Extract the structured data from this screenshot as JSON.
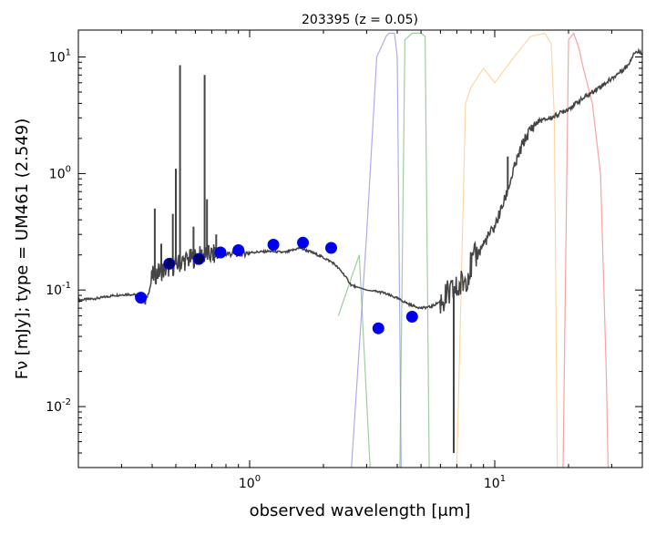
{
  "chart_data": {
    "type": "line",
    "title": "203395 (z = 0.05)",
    "xlabel": "observed wavelength [μm]",
    "ylabel": "Fν [mJy];  type = UM461 (2.549)",
    "x_scale": "log",
    "y_scale": "log",
    "xlim": [
      0.2,
      40
    ],
    "ylim": [
      0.003,
      17
    ],
    "x_ticks": [
      {
        "value": 1,
        "base": "10",
        "exp": "0"
      },
      {
        "value": 10,
        "base": "10",
        "exp": "1"
      }
    ],
    "y_ticks": [
      {
        "value": 0.01,
        "base": "10",
        "exp": "-2"
      },
      {
        "value": 0.1,
        "base": "10",
        "exp": "-1"
      },
      {
        "value": 1,
        "base": "10",
        "exp": "0"
      },
      {
        "value": 10,
        "base": "10",
        "exp": "1"
      }
    ],
    "grid": false,
    "colors": {
      "sed": "#444444",
      "points": "#0000ee",
      "points_dark": "#000066"
    },
    "sed_template": {
      "x": [
        0.2,
        0.24,
        0.28,
        0.32,
        0.36,
        0.38,
        0.39,
        0.4,
        0.42,
        0.45,
        0.5,
        0.55,
        0.6,
        0.65,
        0.7,
        0.8,
        0.9,
        1.0,
        1.2,
        1.4,
        1.6,
        1.8,
        2.0,
        2.2,
        2.4,
        2.6,
        2.8,
        3.0,
        3.5,
        4.0,
        4.5,
        5.0,
        5.5,
        6.0,
        6.5,
        7.0,
        7.5,
        8.0,
        9.0,
        10.0,
        11.0,
        12.0,
        13.0,
        14.0,
        15.0,
        17.0,
        20.0,
        25.0,
        30.0,
        35.0,
        37.0
      ],
      "y": [
        0.082,
        0.085,
        0.09,
        0.092,
        0.09,
        0.085,
        0.1,
        0.13,
        0.14,
        0.15,
        0.165,
        0.18,
        0.19,
        0.2,
        0.2,
        0.205,
        0.205,
        0.21,
        0.215,
        0.21,
        0.23,
        0.21,
        0.19,
        0.17,
        0.14,
        0.11,
        0.105,
        0.1,
        0.095,
        0.085,
        0.075,
        0.07,
        0.072,
        0.08,
        0.09,
        0.1,
        0.12,
        0.16,
        0.25,
        0.35,
        0.6,
        1.1,
        1.8,
        2.4,
        2.8,
        3.0,
        3.6,
        5.0,
        6.5,
        8.5,
        11.0
      ]
    },
    "sed_spikes": [
      {
        "x": 0.375,
        "y": 0.075
      },
      {
        "x": 0.41,
        "y": 0.5
      },
      {
        "x": 0.436,
        "y": 0.25
      },
      {
        "x": 0.486,
        "y": 0.45
      },
      {
        "x": 0.5,
        "y": 1.1
      },
      {
        "x": 0.52,
        "y": 8.5
      },
      {
        "x": 0.59,
        "y": 0.35
      },
      {
        "x": 0.655,
        "y": 7.0
      },
      {
        "x": 0.67,
        "y": 0.6
      },
      {
        "x": 0.73,
        "y": 0.3
      },
      {
        "x": 6.8,
        "y": 0.004
      },
      {
        "x": 11.3,
        "y": 1.4
      }
    ],
    "points": {
      "x": [
        0.36,
        0.47,
        0.62,
        0.76,
        0.9,
        1.25,
        1.65,
        2.15,
        3.35,
        4.6
      ],
      "y": [
        0.086,
        0.168,
        0.185,
        0.21,
        0.22,
        0.245,
        0.255,
        0.23,
        0.047,
        0.059
      ]
    },
    "filters": [
      {
        "color": "#7777dd",
        "x": [
          2.6,
          3.0,
          3.3,
          3.6,
          3.7,
          3.9,
          4.0,
          4.15
        ],
        "y": [
          0.003,
          0.3,
          10.0,
          15.0,
          16.0,
          16.0,
          10.0,
          0.003
        ]
      },
      {
        "color": "#66aa66",
        "x": [
          2.3,
          2.8,
          3.1,
          3.6,
          4.1,
          4.3,
          4.6,
          5.0,
          5.2,
          5.4
        ],
        "y": [
          0.06,
          0.2,
          0.003,
          0.003,
          0.003,
          14.0,
          16.0,
          16.0,
          15.0,
          0.003
        ]
      },
      {
        "color": "#ffbb66",
        "x": [
          7.0,
          7.6,
          8.0,
          9.0,
          10.0,
          12.0,
          14.0,
          16.0,
          17.0,
          17.5,
          18.0
        ],
        "y": [
          0.003,
          4.0,
          5.5,
          8.0,
          6.0,
          10.0,
          15.0,
          16.0,
          13.0,
          3.0,
          0.003
        ]
      },
      {
        "color": "#ee6666",
        "x": [
          19.0,
          20.0,
          21.0,
          22.0,
          23.0,
          25.0,
          27.0,
          28.5,
          29.0
        ],
        "y": [
          0.003,
          14.0,
          16.0,
          12.0,
          8.0,
          4.0,
          1.0,
          0.02,
          0.003
        ]
      }
    ]
  }
}
